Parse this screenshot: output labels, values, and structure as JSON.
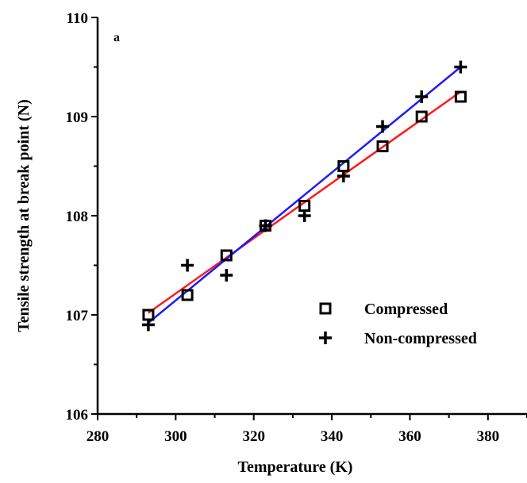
{
  "chart_data": {
    "type": "scatter",
    "title": "",
    "panel_label": "a",
    "xlabel": "Temperature (K)",
    "ylabel": "Tensile strength at break point (N)",
    "xlim": [
      280,
      390
    ],
    "ylim": [
      106,
      110
    ],
    "xticks": [
      280,
      300,
      320,
      340,
      360,
      380
    ],
    "yticks": [
      106,
      107,
      108,
      109,
      110
    ],
    "grid": false,
    "legend_position": "lower-right",
    "series": [
      {
        "name": "Compressed",
        "marker": "open-square",
        "line_color": "#ff1a1a",
        "x": [
          293,
          303,
          313,
          323,
          333,
          343,
          353,
          363,
          373
        ],
        "y": [
          107.0,
          107.2,
          107.6,
          107.9,
          108.1,
          108.5,
          108.7,
          109.0,
          109.2
        ],
        "fit": {
          "x": [
            293,
            373
          ],
          "y": [
            107.02,
            109.25
          ]
        }
      },
      {
        "name": "Non-compressed",
        "marker": "plus",
        "line_color": "#1a1aff",
        "x": [
          293,
          303,
          313,
          323,
          333,
          343,
          353,
          363,
          373
        ],
        "y": [
          106.9,
          107.5,
          107.4,
          107.9,
          108.0,
          108.4,
          108.9,
          109.2,
          109.5
        ],
        "fit": {
          "x": [
            293,
            373
          ],
          "y": [
            106.92,
            109.5
          ]
        }
      }
    ]
  }
}
